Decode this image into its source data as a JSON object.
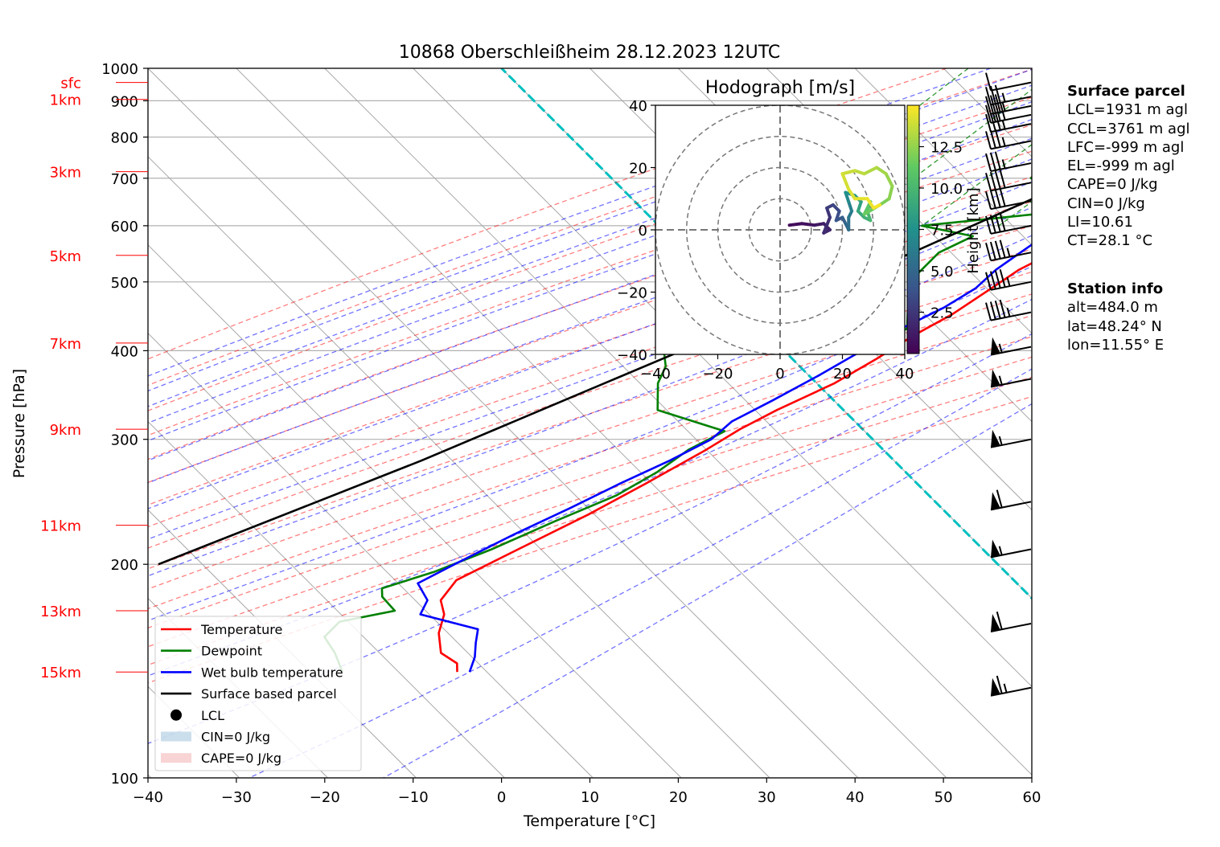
{
  "chart_data": [
    {
      "type": "line",
      "title": "10868 Oberschleißheim 28.12.2023 12UTC",
      "xlabel": "Temperature [°C]",
      "ylabel": "Pressure [hPa]",
      "xlim": [
        -40,
        60
      ],
      "ylim": [
        1000,
        100
      ],
      "y_scale": "log",
      "skew": "isotherms skewed 45°",
      "grid": true,
      "x_ticks": [
        "−40",
        "−30",
        "−20",
        "−10",
        "0",
        "10",
        "20",
        "30",
        "40",
        "50",
        "60"
      ],
      "y_ticks": [
        "100",
        "200",
        "300",
        "400",
        "500",
        "600",
        "700",
        "800",
        "900",
        "1000"
      ],
      "height_ticks": [
        {
          "label": "15km",
          "p": 141
        },
        {
          "label": "13km",
          "p": 172
        },
        {
          "label": "11km",
          "p": 227
        },
        {
          "label": "9km",
          "p": 310
        },
        {
          "label": "7km",
          "p": 410
        },
        {
          "label": "5km",
          "p": 545
        },
        {
          "label": "3km",
          "p": 715
        },
        {
          "label": "1km",
          "p": 904
        },
        {
          "label": "sfc",
          "p": 955
        }
      ],
      "legend": {
        "position": "lower-left",
        "entries": [
          "Temperature",
          "Dewpoint",
          "Wet bulb temperature",
          "Surface based parcel",
          "LCL",
          "CIN=0 J/kg",
          "CAPE=0 J/kg"
        ]
      },
      "series": [
        {
          "name": "Temperature",
          "color": "#ff0000",
          "points": [
            [
              13,
              955
            ],
            [
              12.5,
              935
            ],
            [
              11.5,
              900
            ],
            [
              11.5,
              860
            ],
            [
              12.5,
              820
            ],
            [
              11.5,
              790
            ],
            [
              9,
              740
            ],
            [
              7,
              700
            ],
            [
              6,
              675
            ],
            [
              6,
              640
            ],
            [
              5,
              600
            ],
            [
              3.5,
              560
            ],
            [
              1,
              520
            ],
            [
              0,
              490
            ],
            [
              -1.5,
              450
            ],
            [
              -3.5,
              420
            ],
            [
              -5,
              390
            ],
            [
              -7,
              360
            ],
            [
              -10.5,
              330
            ],
            [
              -12.5,
              310
            ],
            [
              -14,
              290
            ],
            [
              -17,
              260
            ],
            [
              -20,
              235
            ],
            [
              -24,
              210
            ],
            [
              -27.5,
              190
            ],
            [
              -27,
              178
            ],
            [
              -25,
              170
            ],
            [
              -23.5,
              160
            ],
            [
              -21,
              150
            ],
            [
              -18,
              145
            ],
            [
              -17,
              141
            ]
          ]
        },
        {
          "name": "Dewpoint",
          "color": "#008000",
          "points": [
            [
              -2,
              955
            ],
            [
              -4,
              940
            ],
            [
              -2,
              925
            ],
            [
              0,
              900
            ],
            [
              0,
              870
            ],
            [
              -4,
              860
            ],
            [
              -2,
              850
            ],
            [
              -8,
              830
            ],
            [
              -8,
              770
            ],
            [
              -8,
              700
            ],
            [
              -3,
              680
            ],
            [
              3,
              660
            ],
            [
              0,
              630
            ],
            [
              -15,
              600
            ],
            [
              -8,
              580
            ],
            [
              -10,
              550
            ],
            [
              -10,
              510
            ],
            [
              -8,
              470
            ],
            [
              -5,
              430
            ],
            [
              -6,
              412
            ],
            [
              -30,
              400
            ],
            [
              -28,
              380
            ],
            [
              -27,
              360
            ],
            [
              -24,
              330
            ],
            [
              -14,
              308
            ],
            [
              -16,
              290
            ],
            [
              -17,
              270
            ],
            [
              -19,
              250
            ],
            [
              -23,
              230
            ],
            [
              -27,
              210
            ],
            [
              -31,
              195
            ],
            [
              -35,
              185
            ],
            [
              -34,
              180
            ],
            [
              -31,
              172
            ],
            [
              -36,
              166
            ],
            [
              -36,
              158
            ],
            [
              -33,
              150
            ],
            [
              -30,
              141
            ]
          ]
        },
        {
          "name": "Wet bulb temperature",
          "color": "#0000ff",
          "points": [
            [
              6.2,
              955
            ],
            [
              5.2,
              920
            ],
            [
              4.8,
              880
            ],
            [
              3.6,
              860
            ],
            [
              3.2,
              840
            ],
            [
              4.2,
              800
            ],
            [
              4.2,
              730
            ],
            [
              3.7,
              690
            ],
            [
              5.2,
              670
            ],
            [
              4.2,
              640
            ],
            [
              1.8,
              620
            ],
            [
              0.7,
              600
            ],
            [
              -0.5,
              560
            ],
            [
              -1.6,
              520
            ],
            [
              -1.8,
              490
            ],
            [
              -3.2,
              460
            ],
            [
              -5.6,
              430
            ],
            [
              -7.6,
              400
            ],
            [
              -9.6,
              370
            ],
            [
              -12.1,
              340
            ],
            [
              -14.3,
              318
            ],
            [
              -14.6,
              300
            ],
            [
              -16.9,
              280
            ],
            [
              -19.9,
              260
            ],
            [
              -22.8,
              240
            ],
            [
              -26.2,
              220
            ],
            [
              -29.5,
              200
            ],
            [
              -31.5,
              188
            ],
            [
              -28.5,
              178
            ],
            [
              -27.7,
              170
            ],
            [
              -24.7,
              167
            ],
            [
              -19.5,
              162
            ],
            [
              -18.2,
              155
            ],
            [
              -16.7,
              148
            ],
            [
              -15.6,
              141
            ]
          ]
        },
        {
          "name": "Surface based parcel",
          "color": "#000000",
          "points": [
            [
              13,
              955
            ],
            [
              1.5,
              770
            ],
            [
              -13,
              550
            ],
            [
              -28,
              400
            ],
            [
              -45,
              280
            ],
            [
              -63,
              200
            ]
          ]
        }
      ],
      "lcl": {
        "t": 1.5,
        "p": 770
      },
      "bg_lines": {
        "isotherms_step": 10,
        "dry_adiabats_color": "#ff0000",
        "moist_adiabats_color": "#0000ff",
        "mixing_ratio_color": "#008000",
        "zero_isotherm_color": "#00bfbf"
      },
      "wind_barbs": [
        {
          "p": 955,
          "kt": 10
        },
        {
          "p": 912,
          "kt": 35
        },
        {
          "p": 885,
          "kt": 35
        },
        {
          "p": 860,
          "kt": 40
        },
        {
          "p": 835,
          "kt": 35
        },
        {
          "p": 790,
          "kt": 35
        },
        {
          "p": 735,
          "kt": 35
        },
        {
          "p": 690,
          "kt": 40
        },
        {
          "p": 650,
          "kt": 40
        },
        {
          "p": 600,
          "kt": 40
        },
        {
          "p": 550,
          "kt": 45
        },
        {
          "p": 500,
          "kt": 45
        },
        {
          "p": 453,
          "kt": 45
        },
        {
          "p": 405,
          "kt": 55
        },
        {
          "p": 365,
          "kt": 55
        },
        {
          "p": 300,
          "kt": 55
        },
        {
          "p": 245,
          "kt": 60
        },
        {
          "p": 210,
          "kt": 55
        },
        {
          "p": 165,
          "kt": 60
        },
        {
          "p": 134,
          "kt": 65
        }
      ]
    },
    {
      "type": "line",
      "title": "Hodograph [m/s]",
      "xlim": [
        -40,
        40
      ],
      "ylim": [
        -40,
        40
      ],
      "x_ticks": [
        "−40",
        "−20",
        "0",
        "20",
        "40"
      ],
      "y_ticks": [
        "40",
        "20",
        "0",
        "−20",
        "−40"
      ],
      "rings": [
        10,
        20,
        30,
        40
      ],
      "colorbar": {
        "label": "Height [km]",
        "colormap": "viridis",
        "range": [
          0,
          15
        ],
        "ticks": [
          "2.5",
          "5.0",
          "7.5",
          "10.0",
          "12.5"
        ]
      },
      "points": [
        {
          "u": 3,
          "v": 1.5,
          "h": 0.5
        },
        {
          "u": 7,
          "v": 2,
          "h": 0.8
        },
        {
          "u": 11,
          "v": 1.5,
          "h": 1.1
        },
        {
          "u": 14,
          "v": 2,
          "h": 1.4
        },
        {
          "u": 16,
          "v": 0,
          "h": 1.7
        },
        {
          "u": 14,
          "v": -1,
          "h": 2.0
        },
        {
          "u": 16,
          "v": 4,
          "h": 2.4
        },
        {
          "u": 15,
          "v": 7,
          "h": 2.8
        },
        {
          "u": 17,
          "v": 8,
          "h": 3.2
        },
        {
          "u": 19,
          "v": 6,
          "h": 3.6
        },
        {
          "u": 18,
          "v": 3,
          "h": 4.0
        },
        {
          "u": 20,
          "v": 4,
          "h": 4.5
        },
        {
          "u": 21,
          "v": 2,
          "h": 5.0
        },
        {
          "u": 22,
          "v": 0,
          "h": 5.5
        },
        {
          "u": 22,
          "v": 4,
          "h": 6.0
        },
        {
          "u": 23,
          "v": 6,
          "h": 6.5
        },
        {
          "u": 22,
          "v": 9,
          "h": 7.0
        },
        {
          "u": 21,
          "v": 12,
          "h": 7.5
        },
        {
          "u": 24,
          "v": 11,
          "h": 8.0
        },
        {
          "u": 26,
          "v": 9,
          "h": 8.5
        },
        {
          "u": 25,
          "v": 6,
          "h": 9.0
        },
        {
          "u": 27,
          "v": 4,
          "h": 9.5
        },
        {
          "u": 29,
          "v": 3,
          "h": 10.0
        },
        {
          "u": 28,
          "v": 6,
          "h": 10.5
        },
        {
          "u": 29,
          "v": 9,
          "h": 11.0
        },
        {
          "u": 27,
          "v": 5,
          "h": 11.5
        },
        {
          "u": 32,
          "v": 8,
          "h": 12.0
        },
        {
          "u": 35,
          "v": 10,
          "h": 12.3
        },
        {
          "u": 36,
          "v": 14,
          "h": 12.6
        },
        {
          "u": 34,
          "v": 18,
          "h": 12.9
        },
        {
          "u": 31,
          "v": 20,
          "h": 13.2
        },
        {
          "u": 27,
          "v": 18,
          "h": 13.5
        },
        {
          "u": 24,
          "v": 19,
          "h": 13.8
        },
        {
          "u": 20,
          "v": 18,
          "h": 14.0
        },
        {
          "u": 22,
          "v": 13,
          "h": 14.2
        },
        {
          "u": 24,
          "v": 10,
          "h": 14.4
        },
        {
          "u": 28,
          "v": 10,
          "h": 14.6
        },
        {
          "u": 30,
          "v": 7,
          "h": 14.8
        },
        {
          "u": 32,
          "v": 8,
          "h": 15.0
        }
      ]
    }
  ],
  "info": {
    "surface_header": "Surface parcel",
    "surface_lines": [
      "LCL=1931 m agl",
      "CCL=3761 m agl",
      "LFC=-999 m agl",
      "EL=-999 m agl",
      "CAPE=0 J/kg",
      "CIN=0 J/kg",
      "LI=10.61",
      "CT=28.1 °C"
    ],
    "station_header": "Station info",
    "station_lines": [
      "alt=484.0 m",
      "lat=48.24° N",
      "lon=11.55° E"
    ]
  }
}
